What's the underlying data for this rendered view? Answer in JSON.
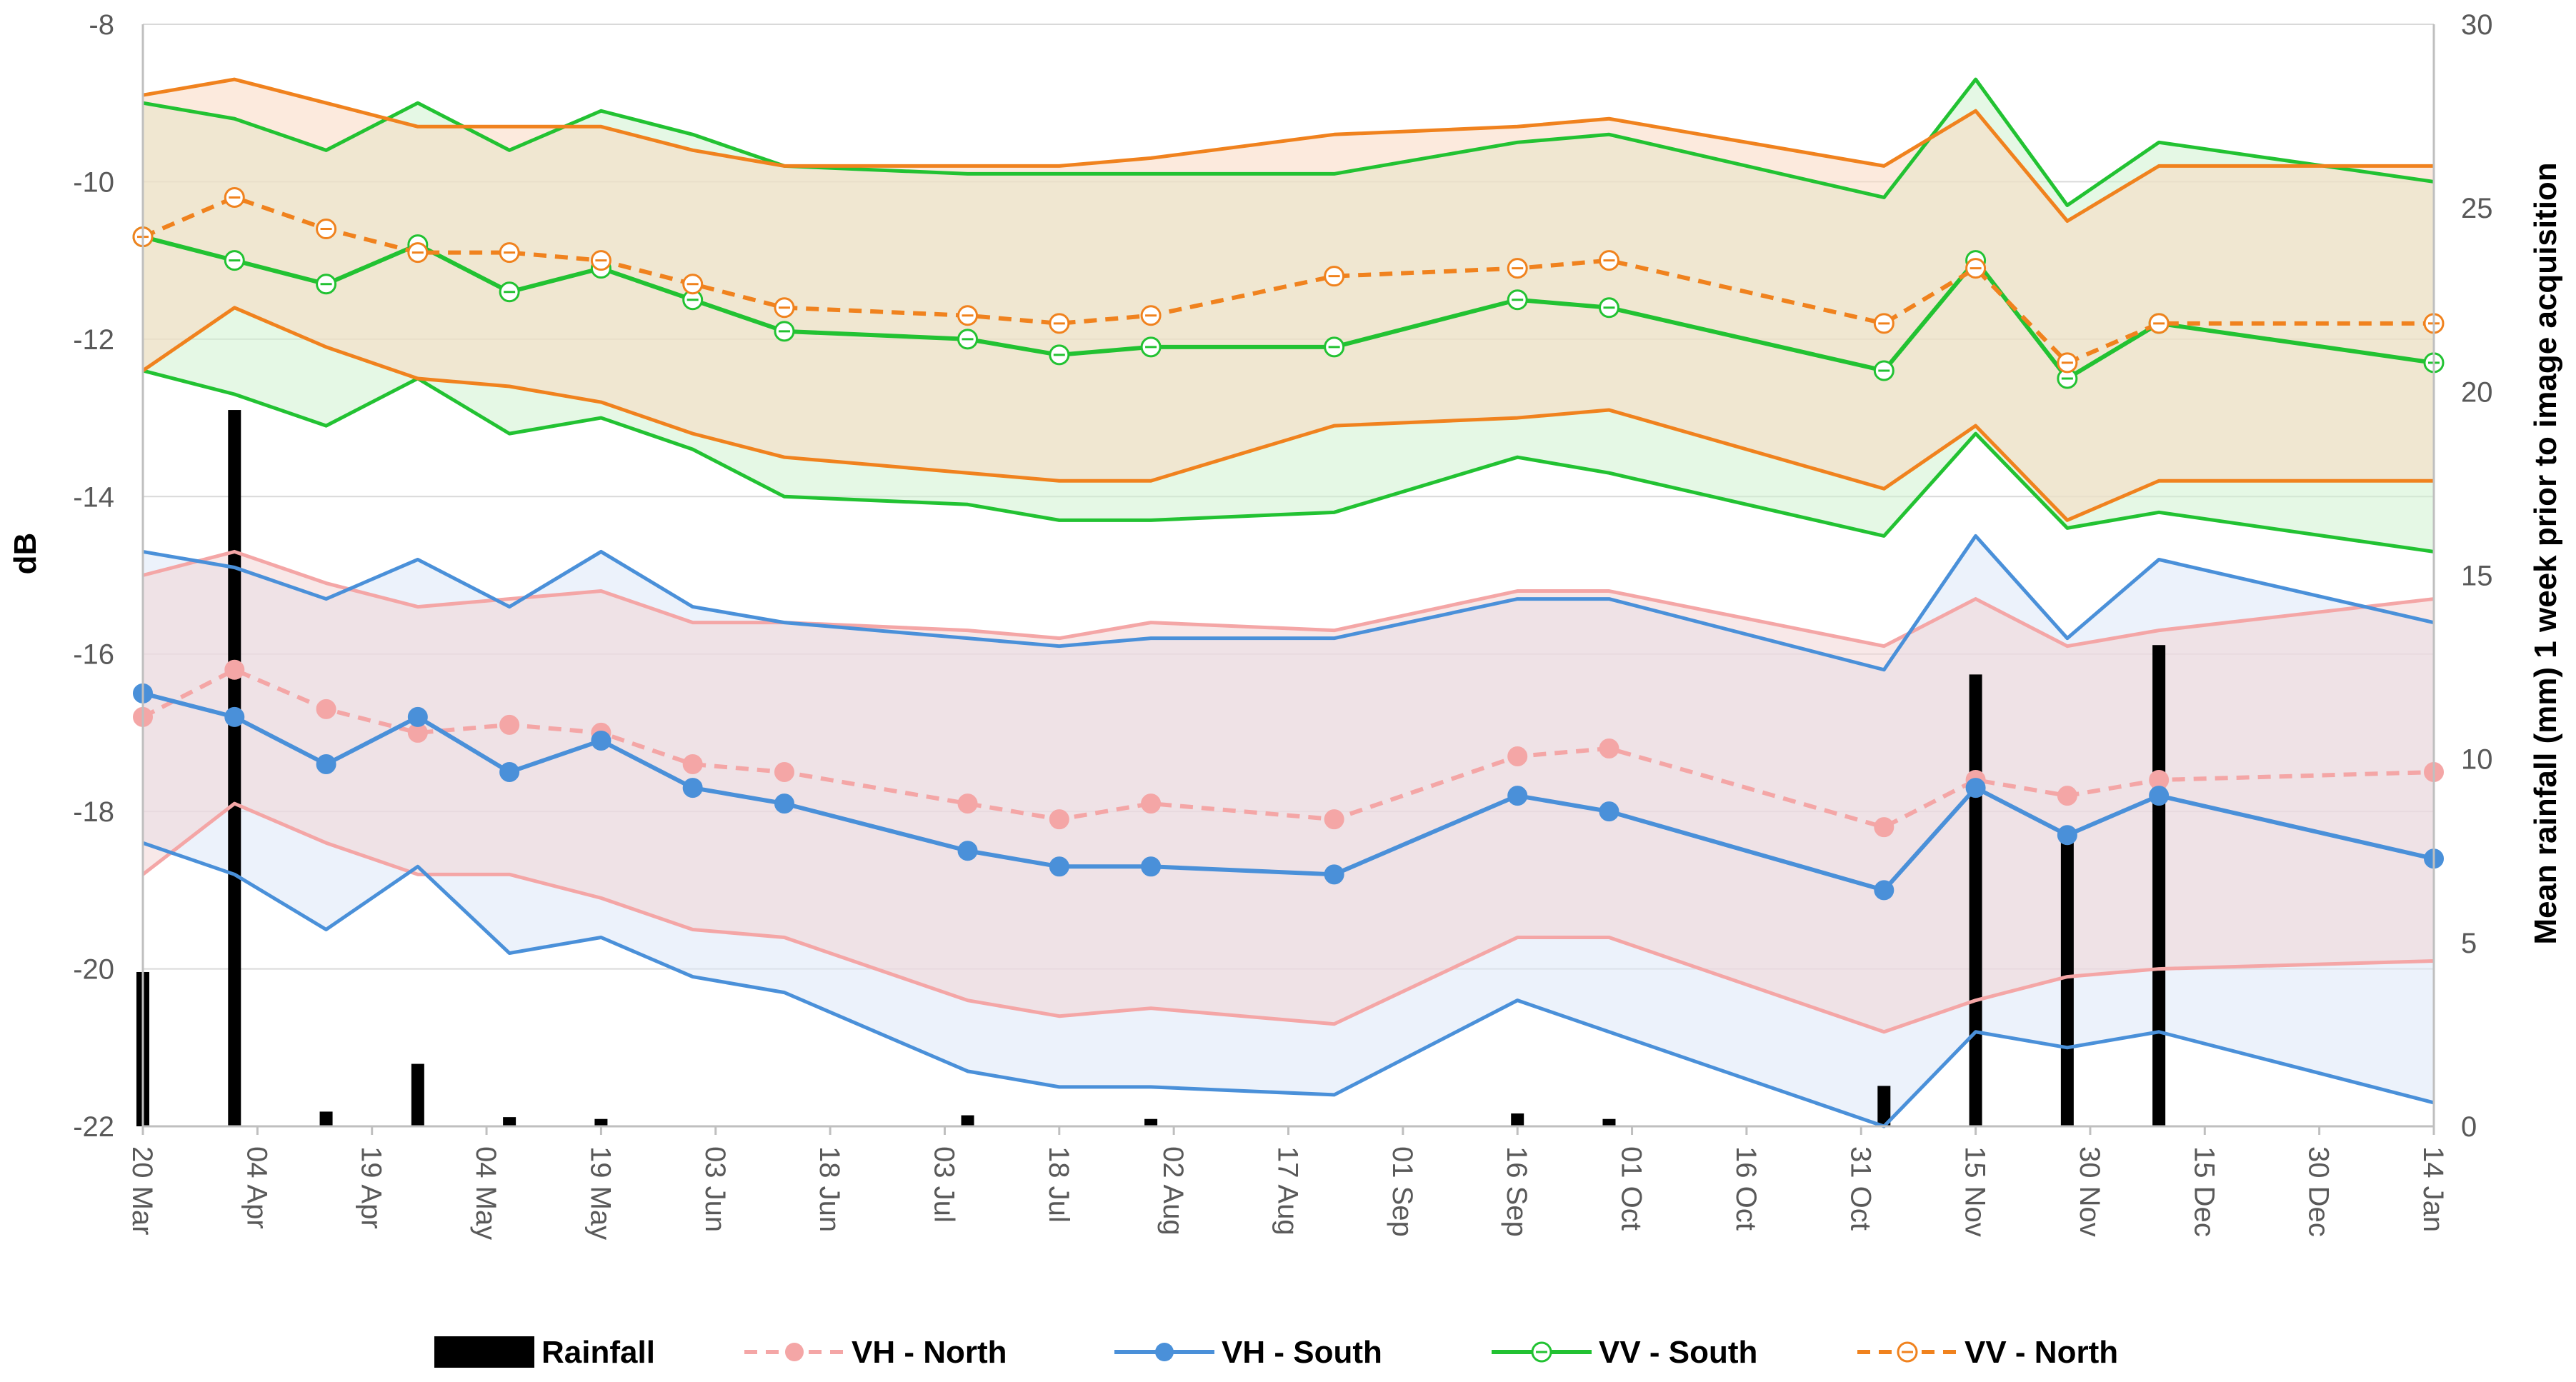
{
  "chart_data": {
    "type": "line",
    "title": "",
    "ylabel": "dB",
    "y2label": "Mean rainfall (mm) 1 week prior to image acquisition",
    "xlabel": "",
    "ylim": [
      -22,
      -8
    ],
    "y2lim": [
      0,
      30
    ],
    "yticks": [
      "-8",
      "-10",
      "-12",
      "-14",
      "-16",
      "-18",
      "-20",
      "-22"
    ],
    "y2ticks": [
      "30",
      "25",
      "20",
      "15",
      "10",
      "5",
      "0"
    ],
    "gridlines": true,
    "xtick_labels": [
      "20 Mar",
      "04 Apr",
      "19 Apr",
      "04 May",
      "19 May",
      "03 Jun",
      "18 Jun",
      "03 Jul",
      "18 Jul",
      "02 Aug",
      "17 Aug",
      "01 Sep",
      "16 Sep",
      "01 Oct",
      "16 Oct",
      "31 Oct",
      "15 Nov",
      "30 Nov",
      "15 Dec",
      "30 Dec",
      "14 Jan"
    ],
    "x_day_offsets": [
      0,
      15,
      30,
      45,
      60,
      75,
      90,
      105,
      120,
      135,
      150,
      165,
      180,
      195,
      210,
      225,
      240,
      255,
      270,
      285,
      300
    ],
    "acquisition_days": [
      0,
      12,
      24,
      36,
      48,
      60,
      72,
      84,
      108,
      120,
      132,
      156,
      180,
      192,
      228,
      240,
      252,
      264,
      300
    ],
    "rainfall_days": [
      0,
      12,
      24,
      36,
      48,
      60,
      108,
      132,
      180,
      192,
      228,
      240,
      252,
      264
    ],
    "rainfall_mm": [
      4.2,
      19.5,
      0.4,
      1.7,
      0.25,
      0.2,
      0.3,
      0.2,
      0.35,
      0.2,
      1.1,
      12.3,
      8.0,
      13.1
    ],
    "series": [
      {
        "name": "VH - North",
        "color": "#F4A6A6",
        "style": "dashed-marker-filled",
        "mean": [
          -16.8,
          -16.2,
          -16.7,
          -17.0,
          -16.9,
          -17.0,
          -17.4,
          -17.5,
          -17.9,
          -18.1,
          -17.9,
          -18.1,
          -17.3,
          -17.2,
          -18.2,
          -17.6,
          -17.8,
          -17.6,
          -17.5
        ],
        "upper": [
          -15.0,
          -14.7,
          -15.1,
          -15.4,
          -15.3,
          -15.2,
          -15.6,
          -15.6,
          -15.7,
          -15.8,
          -15.6,
          -15.7,
          -15.2,
          -15.2,
          -15.9,
          -15.3,
          -15.9,
          -15.7,
          -15.3
        ],
        "lower": [
          -18.8,
          -17.9,
          -18.4,
          -18.8,
          -18.8,
          -19.1,
          -19.5,
          -19.6,
          -20.4,
          -20.6,
          -20.5,
          -20.7,
          -19.6,
          -19.6,
          -20.8,
          -20.4,
          -20.1,
          -20.0,
          -19.9
        ]
      },
      {
        "name": "VH - South",
        "color": "#4A90D9",
        "style": "solid-marker-filled",
        "mean": [
          -16.5,
          -16.8,
          -17.4,
          -16.8,
          -17.5,
          -17.1,
          -17.7,
          -17.9,
          -18.5,
          -18.7,
          -18.7,
          -18.8,
          -17.8,
          -18.0,
          -19.0,
          -17.7,
          -18.3,
          -17.8,
          -18.6
        ],
        "upper": [
          -14.7,
          -14.9,
          -15.3,
          -14.8,
          -15.4,
          -14.7,
          -15.4,
          -15.6,
          -15.8,
          -15.9,
          -15.8,
          -15.8,
          -15.3,
          -15.3,
          -16.2,
          -14.5,
          -15.8,
          -14.8,
          -15.6
        ],
        "lower": [
          -18.4,
          -18.8,
          -19.5,
          -18.7,
          -19.8,
          -19.6,
          -20.1,
          -20.3,
          -21.3,
          -21.5,
          -21.5,
          -21.6,
          -20.4,
          -20.8,
          -22.0,
          -20.8,
          -21.0,
          -20.8,
          -21.7
        ]
      },
      {
        "name": "VV - South",
        "color": "#22C232",
        "style": "solid-marker-hollow",
        "mean": [
          -10.7,
          -11.0,
          -11.3,
          -10.8,
          -11.4,
          -11.1,
          -11.5,
          -11.9,
          -12.0,
          -12.2,
          -12.1,
          -12.1,
          -11.5,
          -11.6,
          -12.4,
          -11.0,
          -12.5,
          -11.8,
          -12.3
        ],
        "upper": [
          -9.0,
          -9.2,
          -9.6,
          -9.0,
          -9.6,
          -9.1,
          -9.4,
          -9.8,
          -9.9,
          -9.9,
          -9.9,
          -9.9,
          -9.5,
          -9.4,
          -10.2,
          -8.7,
          -10.3,
          -9.5,
          -10.0
        ],
        "lower": [
          -12.4,
          -12.7,
          -13.1,
          -12.5,
          -13.2,
          -13.0,
          -13.4,
          -14.0,
          -14.1,
          -14.3,
          -14.3,
          -14.2,
          -13.5,
          -13.7,
          -14.5,
          -13.2,
          -14.4,
          -14.2,
          -14.7
        ]
      },
      {
        "name": "VV - North",
        "color": "#F0821E",
        "style": "dashed-marker-hollow",
        "mean": [
          -10.7,
          -10.2,
          -10.6,
          -10.9,
          -10.9,
          -11.0,
          -11.3,
          -11.6,
          -11.7,
          -11.8,
          -11.7,
          -11.2,
          -11.1,
          -11.0,
          -11.8,
          -11.1,
          -12.3,
          -11.8,
          -11.8
        ],
        "upper": [
          -8.9,
          -8.7,
          -9.0,
          -9.3,
          -9.3,
          -9.3,
          -9.6,
          -9.8,
          -9.8,
          -9.8,
          -9.7,
          -9.4,
          -9.3,
          -9.2,
          -9.8,
          -9.1,
          -10.5,
          -9.8,
          -9.8
        ],
        "lower": [
          -12.4,
          -11.6,
          -12.1,
          -12.5,
          -12.6,
          -12.8,
          -13.2,
          -13.5,
          -13.7,
          -13.8,
          -13.8,
          -13.1,
          -13.0,
          -12.9,
          -13.9,
          -13.1,
          -14.3,
          -13.8,
          -13.8
        ]
      }
    ],
    "legend": {
      "position": "bottom",
      "items": [
        {
          "label": "Rainfall",
          "kind": "bar",
          "color": "#000000"
        },
        {
          "label": "VH - North",
          "kind": "dashed-filled",
          "color": "#F4A6A6"
        },
        {
          "label": "VH - South",
          "kind": "solid-filled",
          "color": "#4A90D9"
        },
        {
          "label": "VV - South",
          "kind": "solid-hollow",
          "color": "#22C232"
        },
        {
          "label": "VV - North",
          "kind": "dashed-hollow",
          "color": "#F0821E"
        }
      ]
    }
  }
}
